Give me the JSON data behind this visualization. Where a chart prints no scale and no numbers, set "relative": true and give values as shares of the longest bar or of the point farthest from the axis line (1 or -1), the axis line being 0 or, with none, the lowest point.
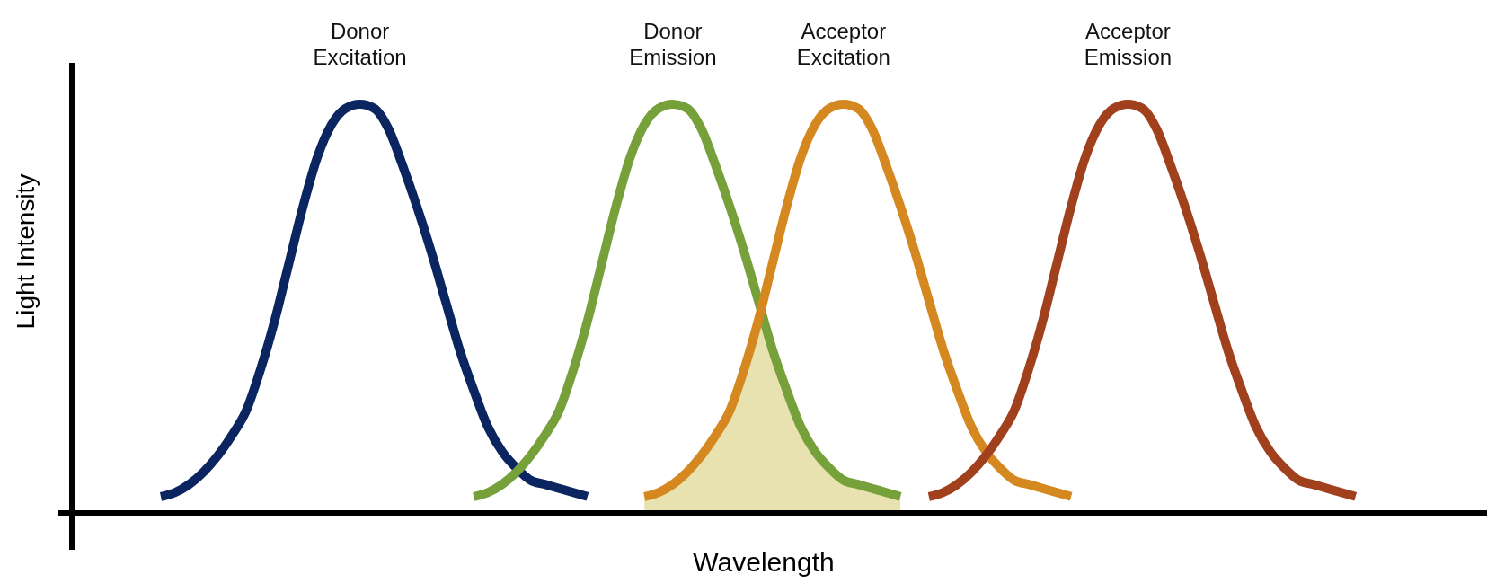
{
  "chart_data": {
    "type": "line",
    "relative": true,
    "xlabel": "Wavelength",
    "ylabel": "Light Intensity",
    "legend": false,
    "marker": "none",
    "line_style": "solid",
    "categories": [
      null,
      null,
      null,
      null,
      null,
      null,
      null,
      null,
      null,
      null,
      null,
      null,
      null,
      null,
      null,
      null,
      null,
      null,
      null,
      null,
      null,
      null,
      null,
      null,
      null,
      null,
      null,
      null,
      null,
      null,
      null,
      null,
      null,
      null,
      null,
      null,
      null,
      null,
      null,
      null,
      null,
      null,
      null,
      null,
      null,
      null,
      null,
      null,
      null,
      null,
      null,
      null,
      null,
      null,
      null,
      null,
      null,
      null,
      null,
      null,
      null,
      null,
      null,
      null,
      null,
      null,
      null,
      null,
      null,
      null,
      null,
      null,
      null,
      null,
      null,
      null,
      null,
      null,
      null,
      null,
      null,
      null,
      null,
      null,
      null
    ],
    "series": [
      {
        "type": "area",
        "color": "#e8e2b0",
        "values": [
          null,
          null,
          null,
          null,
          null,
          null,
          null,
          null,
          null,
          null,
          null,
          null,
          null,
          null,
          null,
          null,
          null,
          null,
          null,
          null,
          null,
          null,
          null,
          null,
          null,
          null,
          null,
          null,
          null,
          null,
          null,
          null,
          null,
          null,
          0.04,
          0.05,
          0.07,
          0.1,
          0.14,
          0.19,
          0.25,
          0.35,
          0.47,
          0.4,
          0.3,
          0.21,
          0.15,
          0.11,
          0.08,
          0.07,
          0.06,
          0.05,
          0.04,
          null,
          null,
          null,
          null,
          null,
          null,
          null,
          null,
          null,
          null,
          null,
          null,
          null,
          null,
          null,
          null,
          null,
          null,
          null,
          null,
          null,
          null,
          null,
          null,
          null,
          null,
          null,
          null,
          null,
          null,
          null,
          null
        ]
      },
      {
        "name": "Donor Excitation",
        "color": "#0b2560",
        "values": [
          0.04,
          0.05,
          0.07,
          0.1,
          0.14,
          0.19,
          0.25,
          0.35,
          0.47,
          0.61,
          0.75,
          0.87,
          0.95,
          0.99,
          1,
          0.99,
          0.94,
          0.85,
          0.75,
          0.64,
          0.52,
          0.4,
          0.3,
          0.21,
          0.15,
          0.11,
          0.08,
          0.07,
          0.06,
          0.05,
          0.04,
          null,
          null,
          null,
          null,
          null,
          null,
          null,
          null,
          null,
          null,
          null,
          null,
          null,
          null,
          null,
          null,
          null,
          null,
          null,
          null,
          null,
          null,
          null,
          null,
          null,
          null,
          null,
          null,
          null,
          null,
          null,
          null,
          null,
          null,
          null,
          null,
          null,
          null,
          null,
          null,
          null,
          null,
          null,
          null,
          null,
          null,
          null,
          null,
          null,
          null,
          null,
          null,
          null,
          null
        ]
      },
      {
        "name": "Donor Emission",
        "color": "#76a03a",
        "values": [
          null,
          null,
          null,
          null,
          null,
          null,
          null,
          null,
          null,
          null,
          null,
          null,
          null,
          null,
          null,
          null,
          null,
          null,
          null,
          null,
          null,
          null,
          0.04,
          0.05,
          0.07,
          0.1,
          0.14,
          0.19,
          0.25,
          0.35,
          0.47,
          0.61,
          0.75,
          0.87,
          0.95,
          0.99,
          1,
          0.99,
          0.94,
          0.85,
          0.75,
          0.64,
          0.52,
          0.4,
          0.3,
          0.21,
          0.15,
          0.11,
          0.08,
          0.07,
          0.06,
          0.05,
          0.04,
          null,
          null,
          null,
          null,
          null,
          null,
          null,
          null,
          null,
          null,
          null,
          null,
          null,
          null,
          null,
          null,
          null,
          null,
          null,
          null,
          null,
          null,
          null,
          null,
          null,
          null,
          null,
          null,
          null,
          null,
          null,
          null
        ]
      },
      {
        "name": "Acceptor Excitation",
        "color": "#d4881f",
        "values": [
          null,
          null,
          null,
          null,
          null,
          null,
          null,
          null,
          null,
          null,
          null,
          null,
          null,
          null,
          null,
          null,
          null,
          null,
          null,
          null,
          null,
          null,
          null,
          null,
          null,
          null,
          null,
          null,
          null,
          null,
          null,
          null,
          null,
          null,
          0.04,
          0.05,
          0.07,
          0.1,
          0.14,
          0.19,
          0.25,
          0.35,
          0.47,
          0.61,
          0.75,
          0.87,
          0.95,
          0.99,
          1,
          0.99,
          0.94,
          0.85,
          0.75,
          0.64,
          0.52,
          0.4,
          0.3,
          0.21,
          0.15,
          0.11,
          0.08,
          0.07,
          0.06,
          0.05,
          0.04,
          null,
          null,
          null,
          null,
          null,
          null,
          null,
          null,
          null,
          null,
          null,
          null,
          null,
          null,
          null,
          null,
          null,
          null,
          null,
          null
        ]
      },
      {
        "name": "Acceptor Emission",
        "color": "#a0401c",
        "values": [
          null,
          null,
          null,
          null,
          null,
          null,
          null,
          null,
          null,
          null,
          null,
          null,
          null,
          null,
          null,
          null,
          null,
          null,
          null,
          null,
          null,
          null,
          null,
          null,
          null,
          null,
          null,
          null,
          null,
          null,
          null,
          null,
          null,
          null,
          null,
          null,
          null,
          null,
          null,
          null,
          null,
          null,
          null,
          null,
          null,
          null,
          null,
          null,
          null,
          null,
          null,
          null,
          null,
          null,
          0.04,
          0.05,
          0.07,
          0.1,
          0.14,
          0.19,
          0.25,
          0.35,
          0.47,
          0.61,
          0.75,
          0.87,
          0.95,
          0.99,
          1,
          0.99,
          0.94,
          0.85,
          0.75,
          0.64,
          0.52,
          0.4,
          0.3,
          0.21,
          0.15,
          0.11,
          0.08,
          0.07,
          0.06,
          0.05,
          0.04
        ]
      }
    ]
  }
}
